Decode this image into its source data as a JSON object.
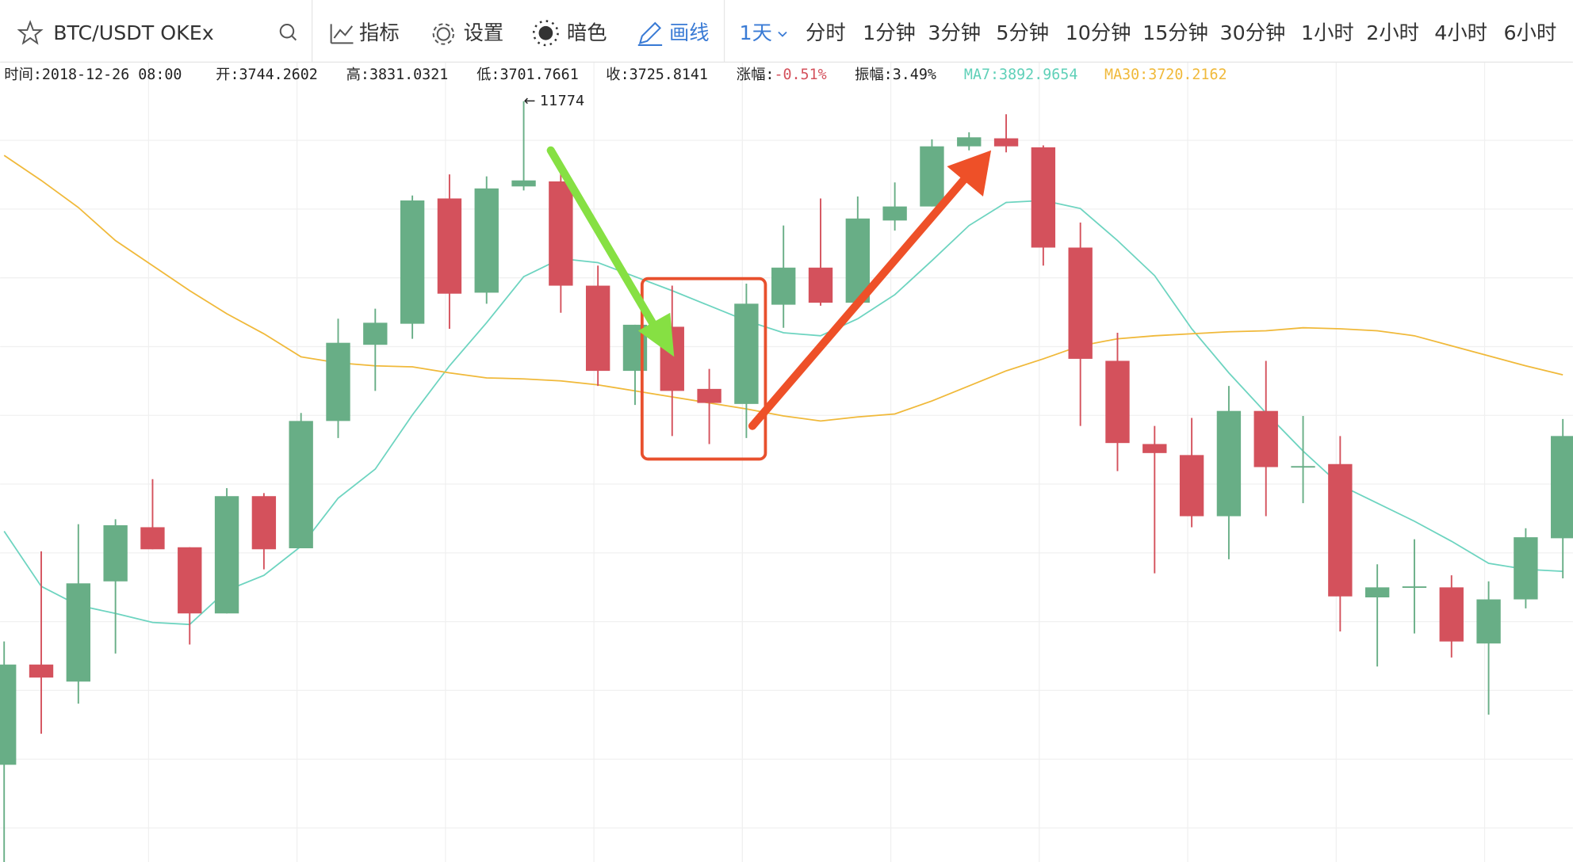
{
  "toolbar": {
    "symbol": "BTC/USDT OKEx",
    "tools": [
      "指标",
      "设置",
      "暗色",
      "画线"
    ],
    "active_tool": "画线",
    "period": "1天",
    "intervals": [
      "分时",
      "1分钟",
      "3分钟",
      "5分钟",
      "10分钟",
      "15分钟",
      "30分钟",
      "1小时",
      "2小时",
      "4小时",
      "6小时"
    ],
    "active_color": "#3a7bd5"
  },
  "info": [
    {
      "label": "时间:",
      "value": "2018-12-26 08:00"
    },
    {
      "label": "开:",
      "value": "3744.2602"
    },
    {
      "label": "高:",
      "value": "3831.0321"
    },
    {
      "label": "低:",
      "value": "3701.7661"
    },
    {
      "label": "收:",
      "value": "3725.8141"
    },
    {
      "label": "涨幅:",
      "value": "-0.51%",
      "color": "#d4515c"
    },
    {
      "label": "振幅:",
      "value": "3.49%"
    },
    {
      "label": "MA7:",
      "value": "3892.9654",
      "color": "#5fd0b8",
      "label_color": "#5fd0b8"
    },
    {
      "label": "MA30:",
      "value": "3720.2162",
      "color": "#f0b93a",
      "label_color": "#f0b93a"
    }
  ],
  "chart_data": {
    "type": "candlestick",
    "ylim": [
      4184,
      12164
    ],
    "up_color": "#68ae86",
    "down_color": "#d4515c",
    "high_annotation": "← 11774",
    "open": [
      5154,
      6154,
      5984,
      6984,
      7524,
      7324,
      6664,
      7834,
      7314,
      8584,
      9344,
      9554,
      10804,
      9864,
      10924,
      10974,
      9934,
      9084,
      9524,
      8904,
      8754,
      9744,
      10114,
      9764,
      10584,
      10724,
      11324,
      11404,
      11314,
      10314,
      9184,
      8354,
      8244,
      7634,
      8684,
      8124,
      8154,
      6824,
      6924,
      6924,
      6364,
      6804,
      7414
    ],
    "high": [
      6384,
      7284,
      7554,
      7604,
      8004,
      7324,
      7914,
      7864,
      8664,
      9604,
      9704,
      10834,
      11044,
      11024,
      11774,
      11084,
      10134,
      9544,
      9934,
      9104,
      9954,
      10534,
      10804,
      10824,
      10964,
      11394,
      11464,
      11644,
      11334,
      10564,
      9464,
      8534,
      8614,
      8934,
      9184,
      8634,
      8434,
      7154,
      7404,
      7044,
      6984,
      7514,
      8604
    ],
    "low": [
      4184,
      5464,
      5764,
      6264,
      7304,
      6354,
      6664,
      7104,
      7314,
      8414,
      8884,
      9404,
      9504,
      9754,
      10884,
      9664,
      8934,
      8744,
      8434,
      8354,
      8414,
      9514,
      9734,
      9764,
      10484,
      10724,
      11284,
      11264,
      10134,
      8534,
      8084,
      7064,
      7524,
      7204,
      7634,
      7764,
      6484,
      6134,
      6464,
      6224,
      5654,
      6714,
      7014
    ],
    "close": [
      6154,
      6024,
      6964,
      7544,
      7304,
      6664,
      7834,
      7304,
      8584,
      9364,
      9564,
      10784,
      9854,
      10904,
      10984,
      9934,
      9084,
      9544,
      8884,
      8764,
      9754,
      10114,
      9764,
      10604,
      10724,
      11324,
      11414,
      11324,
      10314,
      9204,
      8364,
      8264,
      7634,
      8684,
      8124,
      8134,
      6834,
      6924,
      6934,
      6384,
      6804,
      7424,
      8434
    ],
    "series": [
      {
        "name": "MA7",
        "color": "#6dd4c0",
        "values": [
          7484,
          6934,
          6744,
          6664,
          6574,
          6554,
          6894,
          7044,
          7334,
          7814,
          8104,
          8644,
          9134,
          9564,
          10024,
          10204,
          10164,
          10024,
          9884,
          9734,
          9584,
          9464,
          9434,
          9604,
          9844,
          10184,
          10534,
          10764,
          10784,
          10704,
          10384,
          10034,
          9504,
          9064,
          8664,
          8284,
          7944,
          7764,
          7584,
          7384,
          7164,
          7104,
          7084
        ]
      },
      {
        "name": "MA30",
        "color": "#f0b93a",
        "values": [
          11234,
          10984,
          10714,
          10384,
          10134,
          9884,
          9654,
          9454,
          9224,
          9164,
          9134,
          9124,
          9064,
          9014,
          9004,
          8984,
          8944,
          8884,
          8824,
          8764,
          8704,
          8634,
          8584,
          8624,
          8654,
          8784,
          8934,
          9084,
          9204,
          9334,
          9404,
          9434,
          9454,
          9474,
          9484,
          9514,
          9504,
          9484,
          9434,
          9334,
          9234,
          9134,
          9044
        ]
      }
    ]
  }
}
